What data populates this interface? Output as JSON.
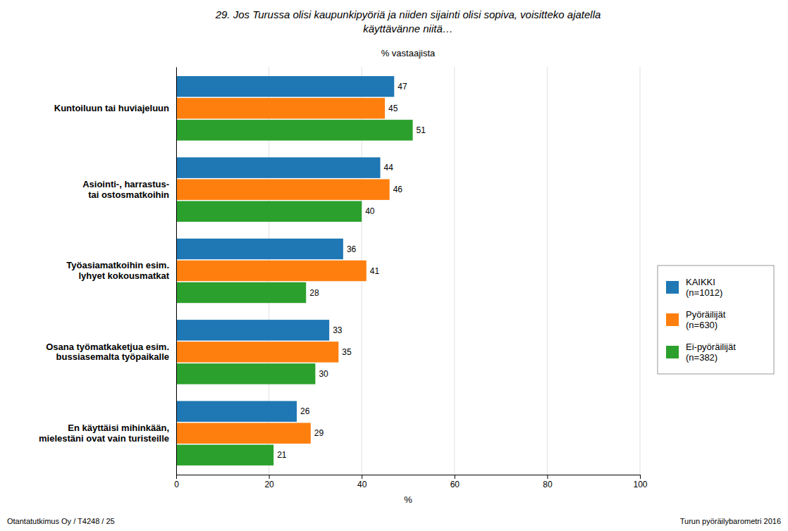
{
  "chart_data": {
    "type": "bar",
    "orientation": "horizontal",
    "title": "29.  Jos Turussa olisi kaupunkipyöriä ja niiden sijainti olisi sopiva, voisitteko ajatella\nkäyttävänne niitä…",
    "subtitle": "% vastaajista",
    "x_label": "%",
    "categories": [
      "Kuntoiluun tai huviajeluun",
      "Asiointi-, harrastus-\ntai ostosmatkoihin",
      "Työasiamatkoihin esim.\n lyhyet kokousmatkat",
      "Osana työmatkaketjua esim.\nbussiasemalta työpaikalle",
      "En käyttäisi mihinkään,\nmielestäni ovat vain turisteille"
    ],
    "series": [
      {
        "name": "KAIKKI\n(n=1012)",
        "values": [
          47,
          44,
          36,
          33,
          26
        ]
      },
      {
        "name": "Pyöräilijät\n(n=630)",
        "values": [
          45,
          46,
          41,
          35,
          29
        ]
      },
      {
        "name": "Ei-pyöräilijät\n(n=382)",
        "values": [
          51,
          40,
          28,
          30,
          21
        ]
      }
    ],
    "xlim": [
      0,
      100
    ],
    "xticks": [
      0,
      20,
      40,
      60,
      80,
      100
    ],
    "grid": true,
    "legend": "right",
    "data_labels": true,
    "annotations": [
      "Otantatutkimus Oy / T4248 / 25",
      "Turun pyöräilybarometri 2016"
    ]
  }
}
